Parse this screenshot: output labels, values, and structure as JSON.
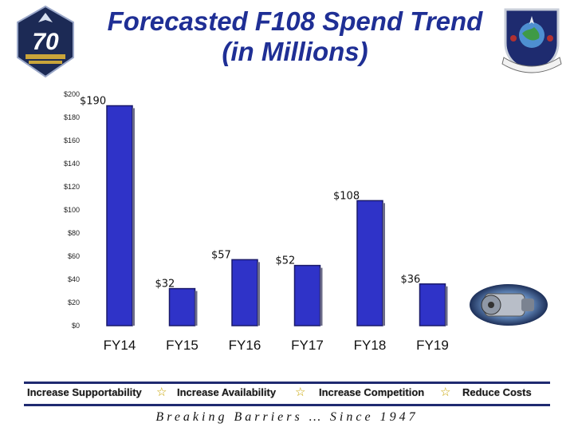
{
  "header": {
    "title_line1": "Forecasted F108 Spend Trend",
    "title_line2": "(in Millions)"
  },
  "logos": {
    "left_badge_text": "70",
    "left_icon": "air-force-70-anniversary-logo",
    "right_icon": "sustainment-center-shield-logo",
    "engine_icon": "turbofan-engine-image"
  },
  "chart_data": {
    "type": "bar",
    "categories": [
      "FY14",
      "FY15",
      "FY16",
      "FY17",
      "FY18",
      "FY19"
    ],
    "values": [
      190,
      32,
      57,
      52,
      108,
      36
    ],
    "value_labels": [
      "$190",
      "$32",
      "$57",
      "$52",
      "$108",
      "$36"
    ],
    "yticks": [
      "$0",
      "$20",
      "$40",
      "$60",
      "$80",
      "$100",
      "$120",
      "$140",
      "$160",
      "$180",
      "$200"
    ],
    "ylim": [
      0,
      200
    ],
    "bar_color": "#2f33c8",
    "title": "",
    "xlabel": "",
    "ylabel": "",
    "grid": false,
    "legend": "none"
  },
  "footer": {
    "goals": [
      "Increase Supportability",
      "Increase Availability",
      "Increase Competition",
      "Reduce Costs"
    ],
    "separator_icon": "star-icon",
    "tagline": "Breaking Barriers … Since 1947"
  },
  "colors": {
    "title": "#1f2f95",
    "star": "#c8a400",
    "rule": "#1f2a70"
  }
}
